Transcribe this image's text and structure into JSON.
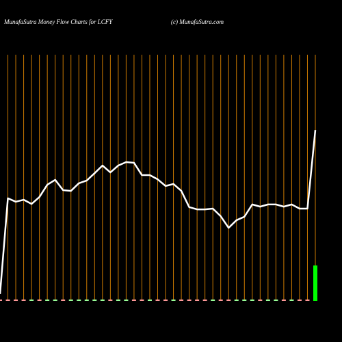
{
  "chart_data": {
    "type": "line",
    "title": "MunafaSutra  Money Flow  Charts for LCFY",
    "subtitle": "(c) MunafaSutra.com",
    "categories": [
      null,
      null,
      null,
      null,
      null,
      null,
      null,
      null,
      null,
      null,
      null,
      null,
      null,
      null,
      null,
      null,
      null,
      null,
      null,
      null,
      null,
      null,
      null,
      null,
      null,
      null,
      null,
      null,
      null,
      null,
      null,
      null,
      null,
      null,
      null,
      null,
      null,
      null,
      null,
      null,
      null
    ],
    "ylim": [
      0,
      100
    ],
    "series": [
      {
        "color": "#ffffff",
        "values": [
          2.8,
          41.7,
          40.3,
          41.1,
          39.4,
          42.2,
          47.2,
          49.2,
          45,
          44.7,
          47.8,
          48.9,
          51.9,
          55,
          52.2,
          55,
          56.4,
          56.1,
          51.1,
          51.1,
          49.4,
          46.7,
          47.5,
          44.7,
          38.1,
          37.2,
          37.2,
          37.5,
          34.4,
          29.7,
          32.8,
          34.2,
          39.2,
          38.3,
          39.2,
          39.2,
          38.3,
          39.2,
          37.5,
          37.5,
          69.4
        ]
      },
      {
        "colors": [
          "#ff9999",
          "#ff9999",
          "#ff9999",
          "#ff9999",
          "#99ff99",
          "#ff9999",
          "#99ff99",
          "#99ff99",
          "#ff9999",
          "#99ff99",
          "#99ff99",
          "#99ff99",
          "#99ff99",
          "#99ff99",
          "#ff9999",
          "#99ff99",
          "#99ff99",
          "#ff9999",
          "#ff9999",
          "#99ff99",
          "#ff9999",
          "#ff9999",
          "#99ff99",
          "#ff9999",
          "#ff9999",
          "#ff9999",
          "#ff9999",
          "#99ff99",
          "#ff9999",
          "#ff9999",
          "#99ff99",
          "#99ff99",
          "#99ff99",
          "#ff9999",
          "#99ff99",
          "#99ff99",
          "#ff9999",
          "#99ff99",
          "#ff9999",
          "#ff9999",
          "#00ff00"
        ],
        "values": [
          0.6,
          0.6,
          0.6,
          0.6,
          0.6,
          0.6,
          0.6,
          0.6,
          0.6,
          0.6,
          0.6,
          0.6,
          0.6,
          0.6,
          0.6,
          0.6,
          0.6,
          0.6,
          0.6,
          0.6,
          0.6,
          0.6,
          0.6,
          0.6,
          0.6,
          0.6,
          0.6,
          0.6,
          0.6,
          0.6,
          0.6,
          0.6,
          0.6,
          0.6,
          0.6,
          0.6,
          0.6,
          0.6,
          0.6,
          0.6,
          14.4
        ]
      }
    ],
    "grid_color": "#cc7a00"
  }
}
